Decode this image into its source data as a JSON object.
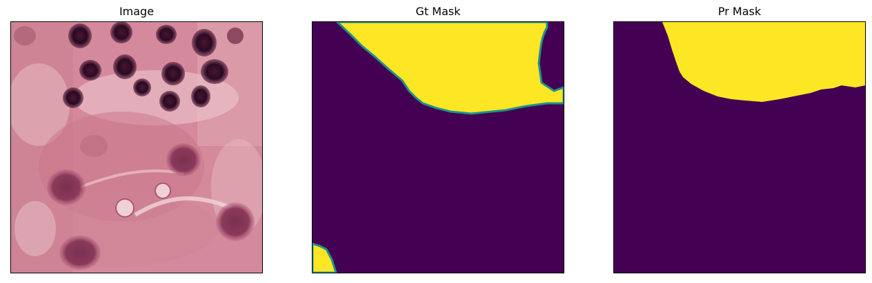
{
  "panels": [
    {
      "title": "Image"
    },
    {
      "title": "Gt Mask"
    },
    {
      "title": "Pr Mask"
    }
  ],
  "colors": {
    "mask_background": "#440154",
    "mask_foreground": "#fde725",
    "mask_edge": "#21918c"
  }
}
